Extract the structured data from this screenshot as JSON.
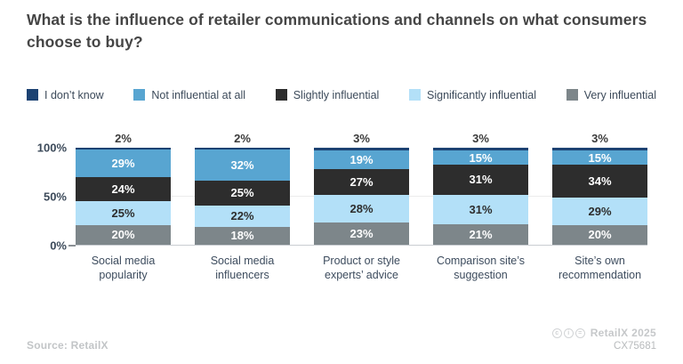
{
  "title": "What is the influence of retailer communications and channels on what consumers choose to buy?",
  "legend": [
    {
      "label": "I don’t know",
      "color": "#1c4272"
    },
    {
      "label": "Not influential at all",
      "color": "#58a5d1"
    },
    {
      "label": "Slightly influential",
      "color": "#2d2d2d"
    },
    {
      "label": "Significantly influential",
      "color": "#b3e0f8"
    },
    {
      "label": "Very influential",
      "color": "#7d868a"
    }
  ],
  "chart_data": {
    "type": "bar",
    "stacked": true,
    "title": "What is the influence of retailer communications and channels on what consumers choose to buy?",
    "categories": [
      "Social media popularity",
      "Social media influencers",
      "Product or style experts’ advice",
      "Comparison site’s suggestion",
      "Site’s own recommendation"
    ],
    "series": [
      {
        "name": "I don’t know",
        "color": "#1c4272",
        "label_color": "#3a3a3a",
        "label_outside": true,
        "values": [
          2,
          2,
          3,
          3,
          3
        ]
      },
      {
        "name": "Not influential at all",
        "color": "#58a5d1",
        "label_color": "#ffffff",
        "label_outside": false,
        "values": [
          29,
          32,
          19,
          15,
          15
        ]
      },
      {
        "name": "Slightly influential",
        "color": "#2d2d2d",
        "label_color": "#ffffff",
        "label_outside": false,
        "values": [
          24,
          25,
          27,
          31,
          34
        ]
      },
      {
        "name": "Significantly influential",
        "color": "#b3e0f8",
        "label_color": "#2d2d2d",
        "label_outside": false,
        "values": [
          25,
          22,
          28,
          31,
          29
        ]
      },
      {
        "name": "Very influential",
        "color": "#7d868a",
        "label_color": "#ffffff",
        "label_outside": false,
        "values": [
          20,
          18,
          23,
          21,
          20
        ]
      }
    ],
    "value_suffix": "%",
    "y_ticks": [
      "100%",
      "50%",
      "0%"
    ],
    "ylim": [
      0,
      100
    ],
    "grid": "50% line only",
    "legend_position": "top"
  },
  "footer": {
    "source": "Source: RetailX",
    "license_icons": [
      "c",
      "i",
      "="
    ],
    "brand": "RetailX 2025",
    "code": "CX75681"
  }
}
